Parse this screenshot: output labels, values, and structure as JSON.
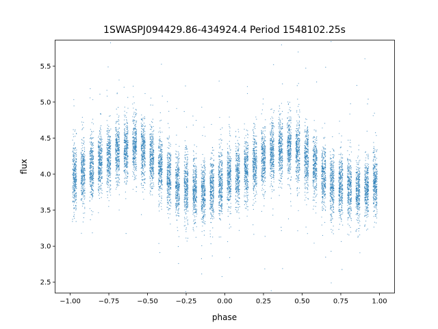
{
  "chart_data": {
    "type": "scatter",
    "title": "1SWASPJ094429.86-434924.4 Period 1548102.25s",
    "xlabel": "phase",
    "ylabel": "flux",
    "xlim": [
      -1.0976,
      1.0976
    ],
    "ylim": [
      2.35,
      5.86
    ],
    "xticks": [
      -1.0,
      -0.75,
      -0.5,
      -0.25,
      0.0,
      0.25,
      0.5,
      0.75,
      1.0
    ],
    "xtick_labels": [
      "−1.00",
      "−0.75",
      "−0.50",
      "−0.25",
      "0.00",
      "0.25",
      "0.50",
      "0.75",
      "1.00"
    ],
    "yticks": [
      2.5,
      3.0,
      3.5,
      4.0,
      4.5,
      5.0,
      5.5
    ],
    "ytick_labels": [
      "2.5",
      "3.0",
      "3.5",
      "4.0",
      "4.5",
      "5.0",
      "5.5"
    ],
    "grid": false,
    "color": "#1f77b4",
    "flux_scatter_sigma": 0.22,
    "phase_bins": [
      {
        "phase": -0.972,
        "mean_flux": 3.98
      },
      {
        "phase": -0.917,
        "mean_flux": 4.02
      },
      {
        "phase": -0.861,
        "mean_flux": 4.08
      },
      {
        "phase": -0.806,
        "mean_flux": 4.15
      },
      {
        "phase": -0.75,
        "mean_flux": 4.22
      },
      {
        "phase": -0.694,
        "mean_flux": 4.3
      },
      {
        "phase": -0.639,
        "mean_flux": 4.35
      },
      {
        "phase": -0.583,
        "mean_flux": 4.38
      },
      {
        "phase": -0.528,
        "mean_flux": 4.32
      },
      {
        "phase": -0.472,
        "mean_flux": 4.22
      },
      {
        "phase": -0.417,
        "mean_flux": 4.1
      },
      {
        "phase": -0.361,
        "mean_flux": 3.95
      },
      {
        "phase": -0.306,
        "mean_flux": 3.85
      },
      {
        "phase": -0.25,
        "mean_flux": 3.82
      },
      {
        "phase": -0.194,
        "mean_flux": 3.8
      },
      {
        "phase": -0.139,
        "mean_flux": 3.75
      },
      {
        "phase": -0.083,
        "mean_flux": 3.8
      },
      {
        "phase": -0.028,
        "mean_flux": 3.88
      },
      {
        "phase": 0.028,
        "mean_flux": 3.98
      },
      {
        "phase": 0.083,
        "mean_flux": 4.02
      },
      {
        "phase": 0.139,
        "mean_flux": 4.08
      },
      {
        "phase": 0.194,
        "mean_flux": 4.15
      },
      {
        "phase": 0.25,
        "mean_flux": 4.22
      },
      {
        "phase": 0.306,
        "mean_flux": 4.3
      },
      {
        "phase": 0.361,
        "mean_flux": 4.35
      },
      {
        "phase": 0.417,
        "mean_flux": 4.38
      },
      {
        "phase": 0.472,
        "mean_flux": 4.32
      },
      {
        "phase": 0.528,
        "mean_flux": 4.22
      },
      {
        "phase": 0.583,
        "mean_flux": 4.1
      },
      {
        "phase": 0.639,
        "mean_flux": 3.95
      },
      {
        "phase": 0.694,
        "mean_flux": 3.85
      },
      {
        "phase": 0.75,
        "mean_flux": 3.82
      },
      {
        "phase": 0.806,
        "mean_flux": 3.8
      },
      {
        "phase": 0.861,
        "mean_flux": 3.75
      },
      {
        "phase": 0.917,
        "mean_flux": 3.8
      },
      {
        "phase": 0.972,
        "mean_flux": 3.88
      }
    ]
  }
}
